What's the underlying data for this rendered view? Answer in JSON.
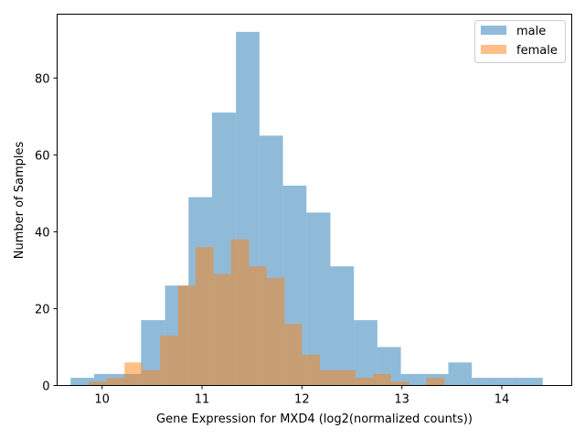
{
  "chart_data": {
    "type": "bar",
    "subtype": "overlapping-histogram",
    "xlabel": "Gene Expression for MXD4 (log2(normalized counts))",
    "ylabel": "Number of Samples",
    "xlim": [
      9.55,
      14.7
    ],
    "ylim": [
      0,
      96.6
    ],
    "xticks": [
      10,
      11,
      12,
      13,
      14
    ],
    "yticks": [
      0,
      20,
      40,
      60,
      80
    ],
    "grid": false,
    "legend_position": "top-right",
    "series": [
      {
        "name": "male",
        "color": "#1f77b4",
        "alpha": 0.5,
        "bins": [
          {
            "x0": 9.685,
            "x1": 9.92,
            "count": 2
          },
          {
            "x0": 9.92,
            "x1": 10.155,
            "count": 3
          },
          {
            "x0": 10.155,
            "x1": 10.39,
            "count": 3
          },
          {
            "x0": 10.39,
            "x1": 10.63,
            "count": 17
          },
          {
            "x0": 10.63,
            "x1": 10.865,
            "count": 26
          },
          {
            "x0": 10.865,
            "x1": 11.1,
            "count": 49
          },
          {
            "x0": 11.1,
            "x1": 11.34,
            "count": 71
          },
          {
            "x0": 11.34,
            "x1": 11.575,
            "count": 92
          },
          {
            "x0": 11.575,
            "x1": 11.81,
            "count": 65
          },
          {
            "x0": 11.81,
            "x1": 12.045,
            "count": 52
          },
          {
            "x0": 12.045,
            "x1": 12.285,
            "count": 45
          },
          {
            "x0": 12.285,
            "x1": 12.52,
            "count": 31
          },
          {
            "x0": 12.52,
            "x1": 12.755,
            "count": 17
          },
          {
            "x0": 12.755,
            "x1": 12.99,
            "count": 10
          },
          {
            "x0": 12.99,
            "x1": 13.23,
            "count": 3
          },
          {
            "x0": 13.23,
            "x1": 13.465,
            "count": 3
          },
          {
            "x0": 13.465,
            "x1": 13.7,
            "count": 6
          },
          {
            "x0": 13.7,
            "x1": 13.935,
            "count": 2
          },
          {
            "x0": 13.935,
            "x1": 14.175,
            "count": 2
          },
          {
            "x0": 14.175,
            "x1": 14.41,
            "count": 2
          }
        ]
      },
      {
        "name": "female",
        "color": "#ff7f0e",
        "alpha": 0.5,
        "bins": [
          {
            "x0": 9.87,
            "x1": 10.045,
            "count": 1
          },
          {
            "x0": 10.045,
            "x1": 10.225,
            "count": 2
          },
          {
            "x0": 10.225,
            "x1": 10.4,
            "count": 6
          },
          {
            "x0": 10.4,
            "x1": 10.58,
            "count": 4
          },
          {
            "x0": 10.58,
            "x1": 10.76,
            "count": 13
          },
          {
            "x0": 10.76,
            "x1": 10.935,
            "count": 26
          },
          {
            "x0": 10.935,
            "x1": 11.115,
            "count": 36
          },
          {
            "x0": 11.115,
            "x1": 11.29,
            "count": 29
          },
          {
            "x0": 11.29,
            "x1": 11.47,
            "count": 38
          },
          {
            "x0": 11.47,
            "x1": 11.645,
            "count": 31
          },
          {
            "x0": 11.645,
            "x1": 11.825,
            "count": 28
          },
          {
            "x0": 11.825,
            "x1": 12.0,
            "count": 16
          },
          {
            "x0": 12.0,
            "x1": 12.18,
            "count": 8
          },
          {
            "x0": 12.18,
            "x1": 12.355,
            "count": 4
          },
          {
            "x0": 12.355,
            "x1": 12.535,
            "count": 4
          },
          {
            "x0": 12.535,
            "x1": 12.71,
            "count": 2
          },
          {
            "x0": 12.71,
            "x1": 12.89,
            "count": 3
          },
          {
            "x0": 12.89,
            "x1": 13.07,
            "count": 1
          },
          {
            "x0": 13.07,
            "x1": 13.245,
            "count": 0
          },
          {
            "x0": 13.245,
            "x1": 13.425,
            "count": 2
          }
        ]
      }
    ]
  }
}
